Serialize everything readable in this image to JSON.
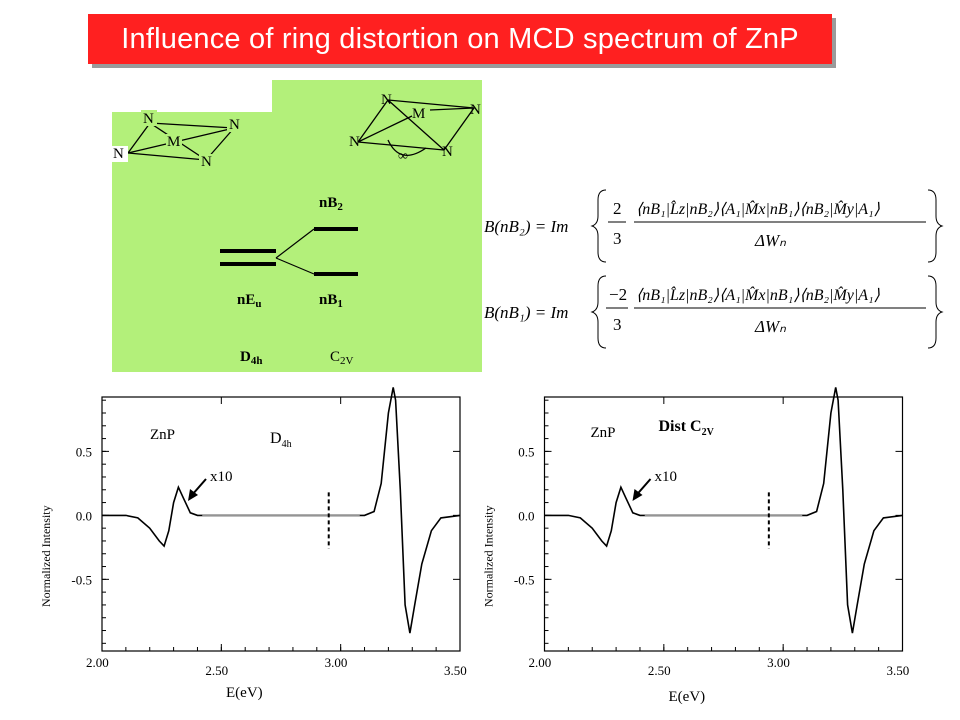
{
  "title": "Influence of ring distortion on MCD spectrum of ZnP",
  "diagram": {
    "atom_N": "N",
    "atom_M": "M",
    "angle_symbol": "∞",
    "level_nB2": "nB",
    "level_nB2_sub": "2",
    "level_nEu": "nE",
    "level_nEu_sub": "u",
    "level_nB1": "nB",
    "level_nB1_sub": "1",
    "sym_D4h": "D",
    "sym_D4h_sub": "4h",
    "sym_C2v": "C",
    "sym_C2v_sub": "2V"
  },
  "equations": [
    {
      "lhs": "B(nB₂) = Im",
      "coef_num": "2",
      "coef_den": "3",
      "numerator": "⟨nB₁|L̂z|nB₂⟩⟨A₁|M̂x|nB₁⟩⟨nB₂|M̂y|A₁⟩",
      "denominator": "ΔWₙ"
    },
    {
      "lhs": "B(nB₁) = Im",
      "coef_num": "−2",
      "coef_den": "3",
      "numerator": "⟨nB₁|L̂z|nB₂⟩⟨A₁|M̂x|nB₁⟩⟨nB₂|M̂y|A₁⟩",
      "denominator": "ΔWₙ"
    }
  ],
  "charts": [
    {
      "compound_label": "ZnP",
      "symmetry_label": "D",
      "symmetry_sub": "4h",
      "arrow_label": "x10",
      "xlabel": "E(eV)",
      "ylabel": "Normalized Intensity",
      "xticks": [
        "2.00",
        "2.50",
        "3.00",
        "3.50"
      ],
      "yticks": [
        "0.5",
        "0.0",
        "-0.5"
      ]
    },
    {
      "compound_label": "ZnP",
      "symmetry_label": "Dist C",
      "symmetry_sub": "2V",
      "arrow_label": "x10",
      "xlabel": "E(eV)",
      "ylabel": "Normalized Intensity",
      "xticks": [
        "2.00",
        "2.50",
        "3.00",
        "3.50"
      ],
      "yticks": [
        "0.5",
        "0.0",
        "-0.5"
      ]
    }
  ],
  "chart_data": [
    {
      "type": "line",
      "xlim": [
        2.0,
        3.5
      ],
      "ylim": [
        -1.0,
        1.0
      ],
      "dashed_marker_x": 2.95,
      "x": [
        2.0,
        2.1,
        2.15,
        2.2,
        2.24,
        2.26,
        2.28,
        2.3,
        2.32,
        2.34,
        2.37,
        2.4,
        2.5,
        2.75,
        3.0,
        3.1,
        3.14,
        3.17,
        3.2,
        3.22,
        3.23,
        3.25,
        3.27,
        3.29,
        3.31,
        3.34,
        3.38,
        3.42,
        3.5
      ],
      "y": [
        0.0,
        0.0,
        -0.02,
        -0.1,
        -0.2,
        -0.24,
        -0.12,
        0.1,
        0.22,
        0.14,
        0.02,
        0.0,
        0.0,
        0.0,
        0.0,
        0.0,
        0.03,
        0.25,
        0.8,
        1.0,
        0.9,
        0.2,
        -0.7,
        -0.92,
        -0.7,
        -0.38,
        -0.12,
        -0.02,
        0.0
      ]
    },
    {
      "type": "line",
      "xlim": [
        2.0,
        3.5
      ],
      "ylim": [
        -1.0,
        1.0
      ],
      "dashed_marker_x": 2.94,
      "x": [
        2.0,
        2.1,
        2.15,
        2.2,
        2.24,
        2.26,
        2.28,
        2.3,
        2.32,
        2.34,
        2.37,
        2.4,
        2.5,
        2.75,
        3.0,
        3.1,
        3.14,
        3.17,
        3.2,
        3.22,
        3.23,
        3.25,
        3.27,
        3.29,
        3.31,
        3.34,
        3.38,
        3.42,
        3.5
      ],
      "y": [
        0.0,
        0.0,
        -0.02,
        -0.1,
        -0.2,
        -0.24,
        -0.12,
        0.1,
        0.22,
        0.14,
        0.02,
        0.0,
        0.0,
        0.0,
        0.0,
        0.0,
        0.03,
        0.25,
        0.8,
        1.0,
        0.9,
        0.2,
        -0.7,
        -0.92,
        -0.7,
        -0.38,
        -0.12,
        -0.02,
        0.0
      ]
    }
  ]
}
